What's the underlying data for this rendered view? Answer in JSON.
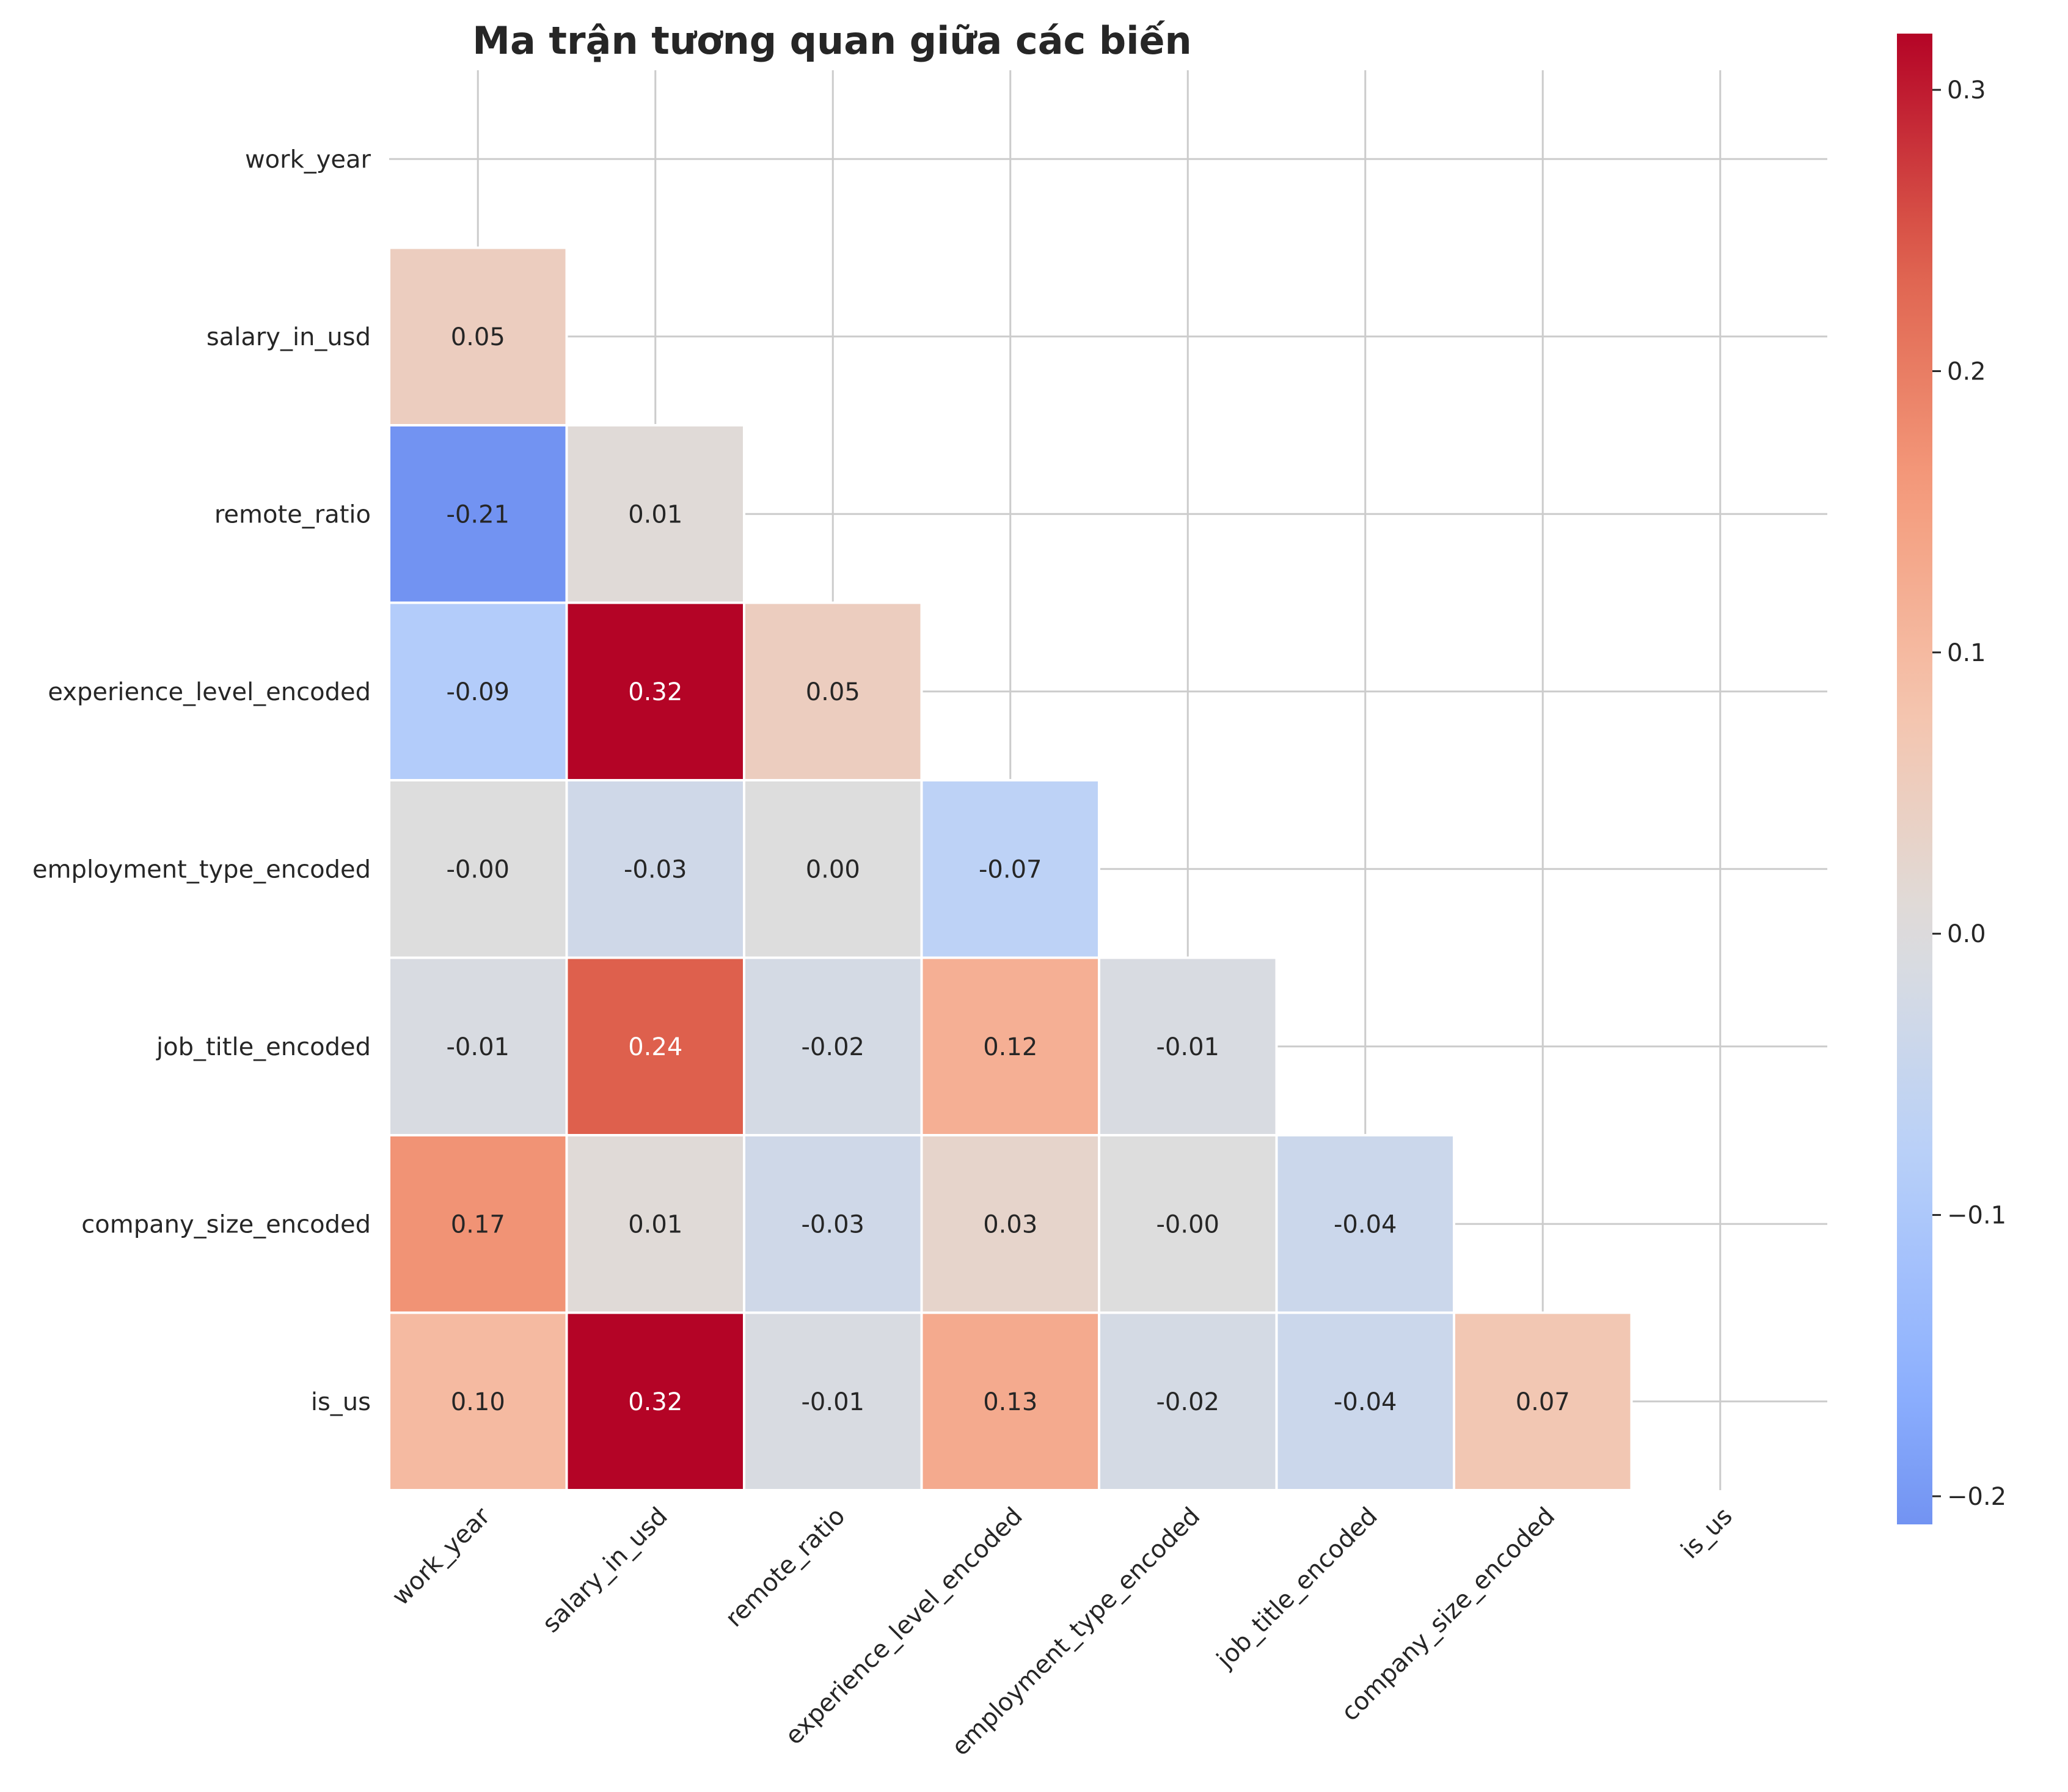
{
  "chart_data": {
    "type": "heatmap",
    "title": "Ma trận tương quan giữa các biến",
    "variables": [
      "work_year",
      "salary_in_usd",
      "remote_ratio",
      "experience_level_encoded",
      "employment_type_encoded",
      "job_title_encoded",
      "company_size_encoded",
      "is_us"
    ],
    "mask": "upper_triangle_including_diagonal",
    "cells": [
      {
        "row": "salary_in_usd",
        "col": "work_year",
        "value": 0.05,
        "label": "0.05"
      },
      {
        "row": "remote_ratio",
        "col": "work_year",
        "value": -0.21,
        "label": "-0.21"
      },
      {
        "row": "remote_ratio",
        "col": "salary_in_usd",
        "value": 0.01,
        "label": "0.01"
      },
      {
        "row": "experience_level_encoded",
        "col": "work_year",
        "value": -0.09,
        "label": "-0.09"
      },
      {
        "row": "experience_level_encoded",
        "col": "salary_in_usd",
        "value": 0.32,
        "label": "0.32"
      },
      {
        "row": "experience_level_encoded",
        "col": "remote_ratio",
        "value": 0.05,
        "label": "0.05"
      },
      {
        "row": "employment_type_encoded",
        "col": "work_year",
        "value": -0.0,
        "label": "-0.00"
      },
      {
        "row": "employment_type_encoded",
        "col": "salary_in_usd",
        "value": -0.03,
        "label": "-0.03"
      },
      {
        "row": "employment_type_encoded",
        "col": "remote_ratio",
        "value": 0.0,
        "label": "0.00"
      },
      {
        "row": "employment_type_encoded",
        "col": "experience_level_encoded",
        "value": -0.07,
        "label": "-0.07"
      },
      {
        "row": "job_title_encoded",
        "col": "work_year",
        "value": -0.01,
        "label": "-0.01"
      },
      {
        "row": "job_title_encoded",
        "col": "salary_in_usd",
        "value": 0.24,
        "label": "0.24"
      },
      {
        "row": "job_title_encoded",
        "col": "remote_ratio",
        "value": -0.02,
        "label": "-0.02"
      },
      {
        "row": "job_title_encoded",
        "col": "experience_level_encoded",
        "value": 0.12,
        "label": "0.12"
      },
      {
        "row": "job_title_encoded",
        "col": "employment_type_encoded",
        "value": -0.01,
        "label": "-0.01"
      },
      {
        "row": "company_size_encoded",
        "col": "work_year",
        "value": 0.17,
        "label": "0.17"
      },
      {
        "row": "company_size_encoded",
        "col": "salary_in_usd",
        "value": 0.01,
        "label": "0.01"
      },
      {
        "row": "company_size_encoded",
        "col": "remote_ratio",
        "value": -0.03,
        "label": "-0.03"
      },
      {
        "row": "company_size_encoded",
        "col": "experience_level_encoded",
        "value": 0.03,
        "label": "0.03"
      },
      {
        "row": "company_size_encoded",
        "col": "employment_type_encoded",
        "value": -0.0,
        "label": "-0.00"
      },
      {
        "row": "company_size_encoded",
        "col": "job_title_encoded",
        "value": -0.04,
        "label": "-0.04"
      },
      {
        "row": "is_us",
        "col": "work_year",
        "value": 0.1,
        "label": "0.10"
      },
      {
        "row": "is_us",
        "col": "salary_in_usd",
        "value": 0.32,
        "label": "0.32"
      },
      {
        "row": "is_us",
        "col": "remote_ratio",
        "value": -0.01,
        "label": "-0.01"
      },
      {
        "row": "is_us",
        "col": "experience_level_encoded",
        "value": 0.13,
        "label": "0.13"
      },
      {
        "row": "is_us",
        "col": "employment_type_encoded",
        "value": -0.02,
        "label": "-0.02"
      },
      {
        "row": "is_us",
        "col": "job_title_encoded",
        "value": -0.04,
        "label": "-0.04"
      },
      {
        "row": "is_us",
        "col": "company_size_encoded",
        "value": 0.07,
        "label": "0.07"
      }
    ],
    "colormap": "coolwarm",
    "colorbar": {
      "range": [
        -0.21,
        0.32
      ],
      "ticks": [
        -0.2,
        -0.1,
        0.0,
        0.1,
        0.2,
        0.3
      ],
      "tick_labels": [
        "−0.2",
        "−0.1",
        "0.0",
        "0.1",
        "0.2",
        "0.3"
      ]
    },
    "grid": true,
    "legend": "colorbar-right"
  }
}
